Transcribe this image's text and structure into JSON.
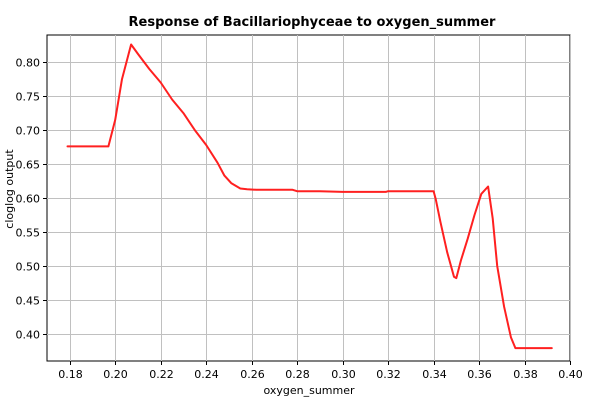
{
  "chart_data": {
    "type": "line",
    "title": "Response of Bacillariophyceae to oxygen_summer",
    "xlabel": "oxygen_summer",
    "ylabel": "cloglog output",
    "xlim": [
      0.17,
      0.4
    ],
    "ylim": [
      0.36,
      0.84
    ],
    "xticks": [
      0.18,
      0.2,
      0.22,
      0.24,
      0.26,
      0.28,
      0.3,
      0.32,
      0.34,
      0.36,
      0.38,
      0.4
    ],
    "xtick_labels": [
      "0.18",
      "0.20",
      "0.22",
      "0.24",
      "0.26",
      "0.28",
      "0.30",
      "0.32",
      "0.34",
      "0.36",
      "0.38",
      "0.40"
    ],
    "yticks": [
      0.4,
      0.45,
      0.5,
      0.55,
      0.6,
      0.65,
      0.7,
      0.75,
      0.8
    ],
    "ytick_labels": [
      "0.40",
      "0.45",
      "0.50",
      "0.55",
      "0.60",
      "0.65",
      "0.70",
      "0.75",
      "0.80"
    ],
    "grid": true,
    "series": [
      {
        "color": "#ff2020",
        "x": [
          0.179,
          0.197,
          0.2,
          0.203,
          0.207,
          0.21,
          0.215,
          0.22,
          0.225,
          0.23,
          0.235,
          0.24,
          0.245,
          0.248,
          0.251,
          0.255,
          0.258,
          0.262,
          0.27,
          0.278,
          0.28,
          0.29,
          0.3,
          0.31,
          0.319,
          0.32,
          0.33,
          0.34,
          0.341,
          0.343,
          0.346,
          0.349,
          0.35,
          0.352,
          0.355,
          0.358,
          0.361,
          0.364,
          0.366,
          0.368,
          0.371,
          0.374,
          0.376,
          0.385,
          0.392
        ],
        "y": [
          0.676,
          0.676,
          0.715,
          0.775,
          0.826,
          0.812,
          0.79,
          0.77,
          0.745,
          0.725,
          0.7,
          0.678,
          0.652,
          0.633,
          0.622,
          0.614,
          0.613,
          0.612,
          0.612,
          0.612,
          0.61,
          0.61,
          0.609,
          0.609,
          0.609,
          0.61,
          0.61,
          0.61,
          0.598,
          0.565,
          0.52,
          0.484,
          0.482,
          0.508,
          0.54,
          0.575,
          0.606,
          0.617,
          0.57,
          0.5,
          0.44,
          0.395,
          0.379,
          0.379,
          0.379
        ]
      }
    ]
  }
}
